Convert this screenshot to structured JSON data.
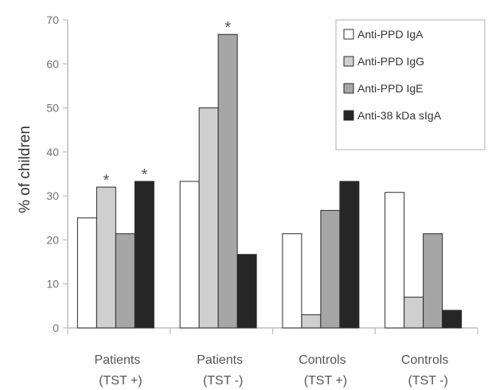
{
  "chart_data": {
    "type": "bar",
    "ylabel": "% of children",
    "xlabel": "",
    "ylim": [
      0,
      70
    ],
    "yticks": [
      0,
      10,
      20,
      30,
      40,
      50,
      60,
      70
    ],
    "grid": false,
    "legend_position": "top-right",
    "categories": [
      {
        "line1": "Patients",
        "line2": "(TST +)"
      },
      {
        "line1": "Patients",
        "line2": "(TST -)"
      },
      {
        "line1": "Controls",
        "line2": "(TST +)"
      },
      {
        "line1": "Controls",
        "line2": "(TST -)"
      }
    ],
    "series": [
      {
        "name": "Anti-PPD IgA",
        "color": "#ffffff",
        "values": [
          25,
          33.3,
          21.4,
          30.8
        ]
      },
      {
        "name": "Anti-PPD IgG",
        "color": "#cfcfcf",
        "values": [
          32,
          50,
          3,
          7
        ]
      },
      {
        "name": "Anti-PPD IgE",
        "color": "#a6a6a6",
        "values": [
          21.4,
          66.7,
          26.7,
          21.4
        ]
      },
      {
        "name": "Anti-38 kDa sIgA",
        "color": "#262626",
        "values": [
          33.3,
          16.7,
          33.3,
          4
        ]
      }
    ],
    "annotations": [
      {
        "text": "*",
        "category_index": 0,
        "series_index": 1
      },
      {
        "text": "*",
        "category_index": 0,
        "series_index": 3
      },
      {
        "text": "*",
        "category_index": 1,
        "series_index": 2
      }
    ]
  }
}
